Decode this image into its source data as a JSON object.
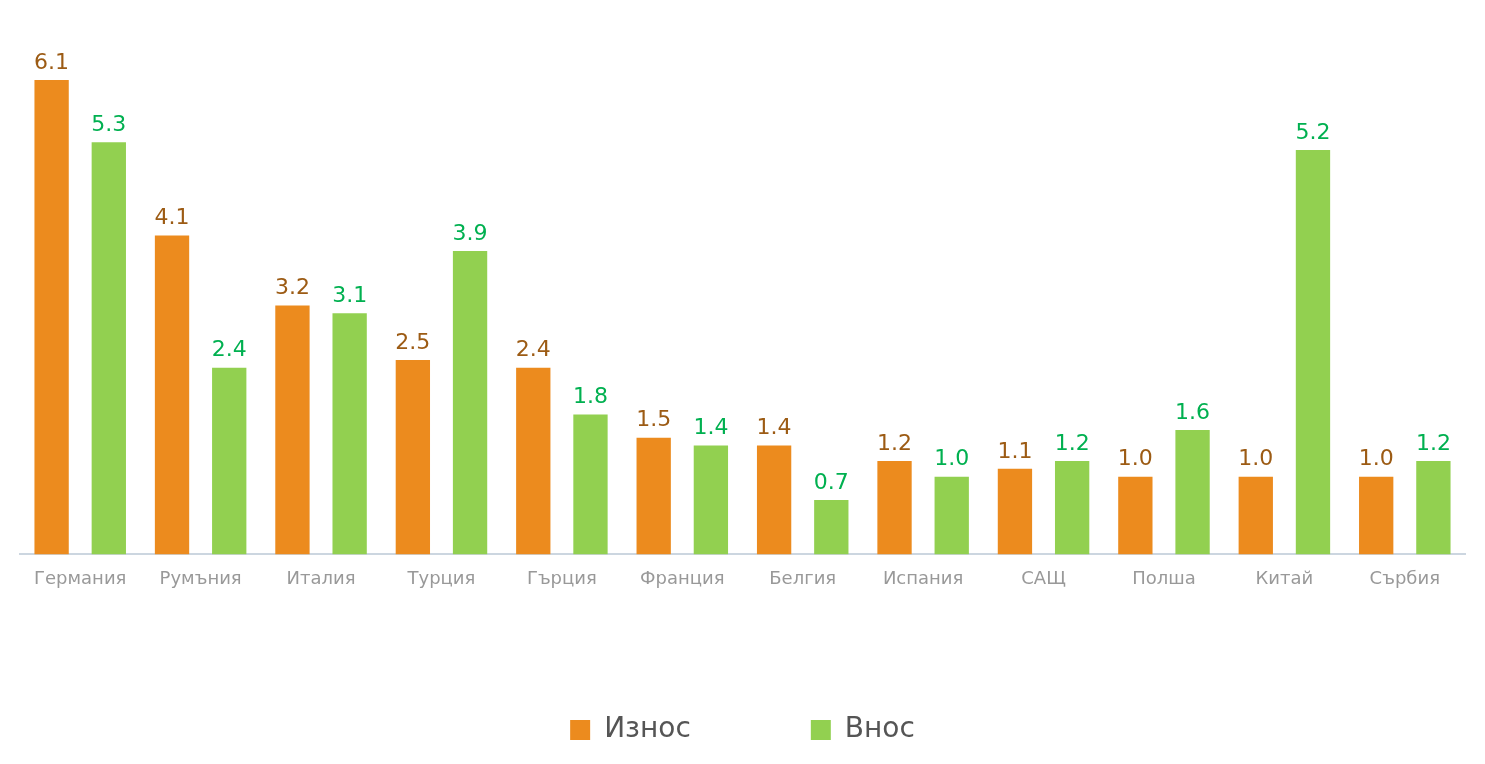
{
  "chart_data": {
    "type": "bar",
    "categories": [
      "Германия",
      "Румъния",
      "Италия",
      "Турция",
      "Гърция",
      "Франция",
      "Белгия",
      "Испания",
      "САЩ",
      "Полша",
      "Китай",
      "Сърбия"
    ],
    "series": [
      {
        "name": "Износ",
        "color": "#ec8b1e",
        "values": [
          6.1,
          4.1,
          3.2,
          2.5,
          2.4,
          1.5,
          1.4,
          1.2,
          1.1,
          1.0,
          1.0,
          1.0
        ],
        "value_labels": [
          "6.1",
          "4.1",
          "3.2",
          "2.5",
          "2.4",
          "1.5",
          "1.4",
          "1.2",
          "1.1",
          "1.0",
          "1.0",
          "1.0"
        ]
      },
      {
        "name": "Внос",
        "color": "#92d050",
        "values": [
          5.3,
          2.4,
          3.1,
          3.9,
          1.8,
          1.4,
          0.7,
          1.0,
          1.2,
          1.6,
          5.2,
          1.2
        ],
        "value_labels": [
          "5.3",
          "2.4",
          "3.1",
          "3.9",
          "1.8",
          "1.4",
          "0.7",
          "1.0",
          "1.2",
          "1.6",
          "5.2",
          "1.2"
        ]
      }
    ],
    "legend": "bottom",
    "grid": false
  }
}
